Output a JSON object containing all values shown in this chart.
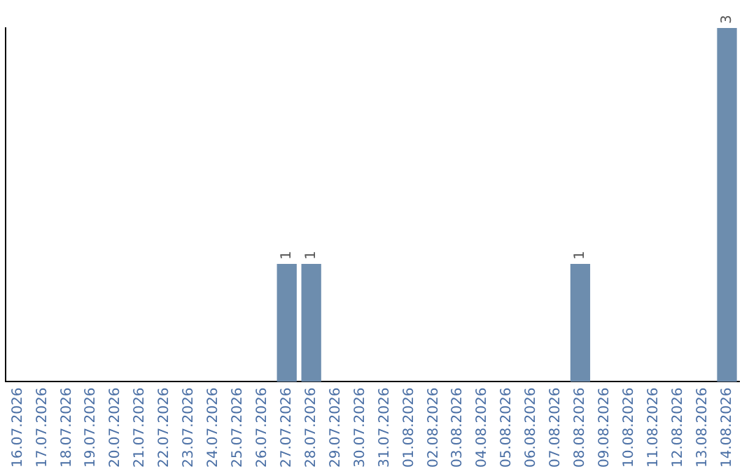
{
  "chart_data": {
    "type": "bar",
    "categories": [
      "16.07.2026",
      "17.07.2026",
      "18.07.2026",
      "19.07.2026",
      "20.07.2026",
      "21.07.2026",
      "22.07.2026",
      "23.07.2026",
      "24.07.2026",
      "25.07.2026",
      "26.07.2026",
      "27.07.2026",
      "28.07.2026",
      "29.07.2026",
      "30.07.2026",
      "31.07.2026",
      "01.08.2026",
      "02.08.2026",
      "03.08.2026",
      "04.08.2026",
      "05.08.2026",
      "06.08.2026",
      "07.08.2026",
      "08.08.2026",
      "09.08.2026",
      "10.08.2026",
      "11.08.2026",
      "12.08.2026",
      "13.08.2026",
      "14.08.2026"
    ],
    "values": [
      0,
      0,
      0,
      0,
      0,
      0,
      0,
      0,
      0,
      0,
      0,
      1,
      1,
      0,
      0,
      0,
      0,
      0,
      0,
      0,
      0,
      0,
      0,
      1,
      0,
      0,
      0,
      0,
      0,
      3
    ],
    "value_labels": [
      null,
      null,
      null,
      null,
      null,
      null,
      null,
      null,
      null,
      null,
      null,
      "1",
      "1",
      null,
      null,
      null,
      null,
      null,
      null,
      null,
      null,
      null,
      null,
      "1",
      null,
      null,
      null,
      null,
      null,
      "3"
    ],
    "color": "#6d8dae",
    "grid": false,
    "legend": false,
    "tick_labels": "x"
  }
}
